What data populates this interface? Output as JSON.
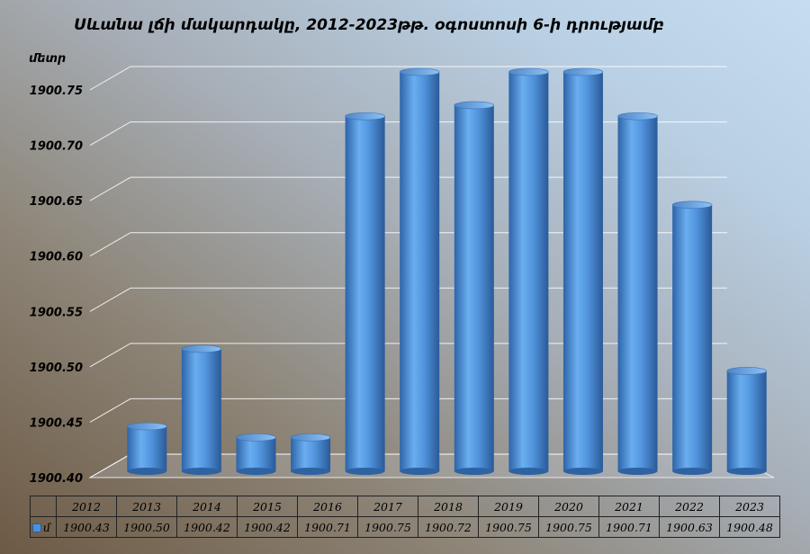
{
  "chart_data": {
    "type": "bar",
    "title": "Սևանա լճի մակարդակը, 2012-2023թթ. օգոստոսի 6-ի դրությամբ",
    "ylabel": "մետր",
    "categories": [
      "2012",
      "2013",
      "2014",
      "2015",
      "2016",
      "2017",
      "2018",
      "2019",
      "2020",
      "2021",
      "2022",
      "2023"
    ],
    "series": [
      {
        "name": "մ",
        "values": [
          1900.43,
          1900.5,
          1900.42,
          1900.42,
          1900.71,
          1900.75,
          1900.72,
          1900.75,
          1900.75,
          1900.71,
          1900.63,
          1900.48
        ],
        "display": [
          "1900.43",
          "1900.50",
          "1900.42",
          "1900.42",
          "1900.71",
          "1900.75",
          "1900.72",
          "1900.75",
          "1900.75",
          "1900.71",
          "1900.63",
          "1900.48"
        ]
      }
    ],
    "ylim": [
      1900.4,
      1900.75
    ],
    "yticks": [
      "1900.40",
      "1900.45",
      "1900.50",
      "1900.55",
      "1900.60",
      "1900.65",
      "1900.70",
      "1900.75"
    ],
    "bar_color": "#4f8fd6",
    "grid": true,
    "legend": "in-data-table"
  }
}
